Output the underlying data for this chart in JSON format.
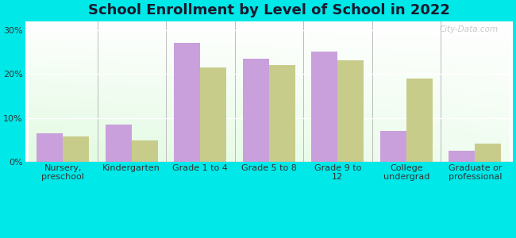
{
  "title": "School Enrollment by Level of School in 2022",
  "categories": [
    "Nursery,\npreschool",
    "Kindergarten",
    "Grade 1 to 4",
    "Grade 5 to 8",
    "Grade 9 to\n12",
    "College\nundergrad",
    "Graduate or\nprofessional"
  ],
  "zip_values": [
    6.5,
    8.5,
    27.0,
    23.5,
    25.0,
    7.0,
    2.5
  ],
  "ok_values": [
    5.8,
    4.8,
    21.5,
    22.0,
    23.0,
    19.0,
    4.2
  ],
  "zip_color": "#c9a0dc",
  "ok_color": "#c8cc8a",
  "background_outer": "#00e8e8",
  "ylim": [
    0,
    32
  ],
  "yticks": [
    0,
    10,
    20,
    30
  ],
  "ytick_labels": [
    "0%",
    "10%",
    "20%",
    "30%"
  ],
  "bar_width": 0.38,
  "title_fontsize": 13,
  "tick_fontsize": 8,
  "legend_fontsize": 9,
  "watermark": "City-Data.com"
}
